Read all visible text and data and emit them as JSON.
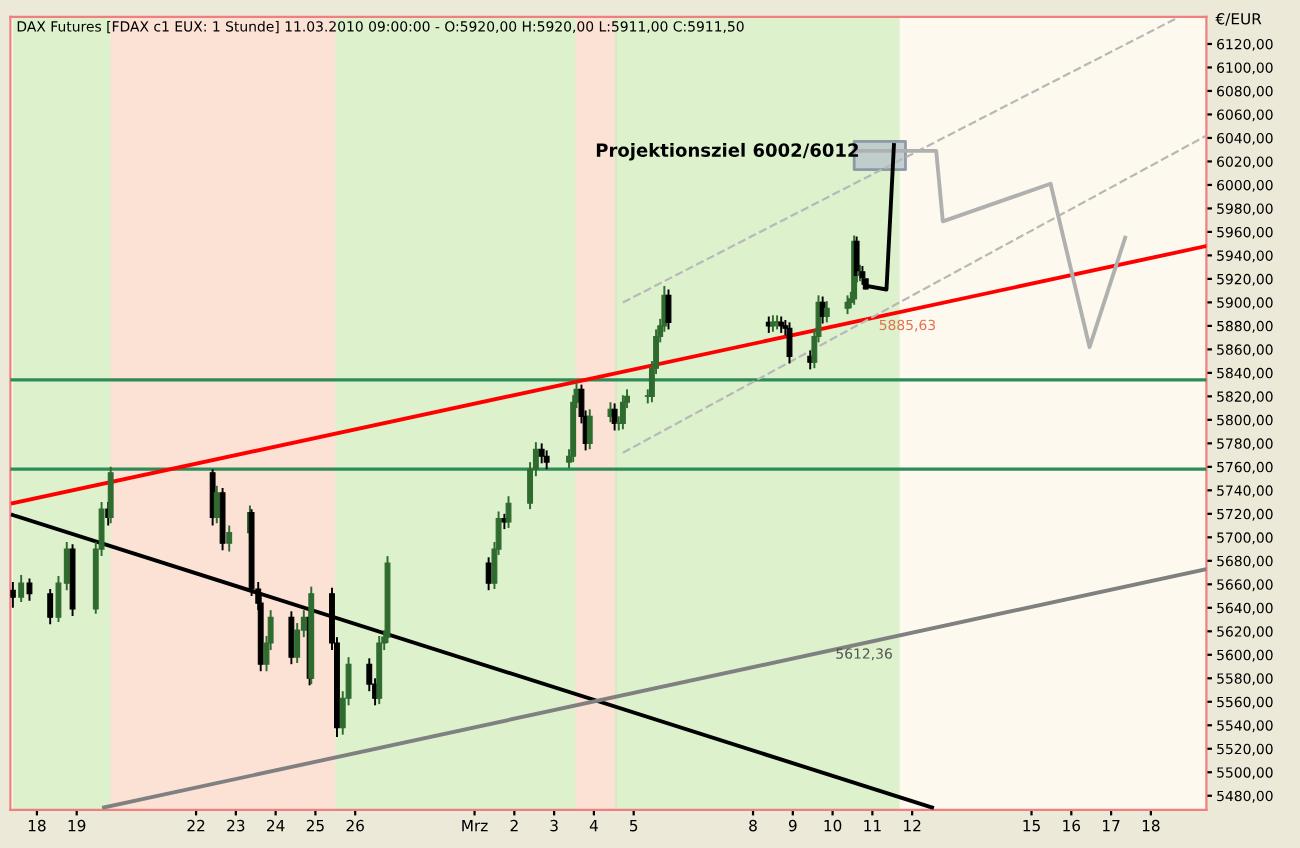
{
  "chart_data": {
    "type": "candlestick",
    "title": "DAX Futures [FDAX c1 EUX: 1 Stunde] 11.03.2010 09:00:00 - O:5920,00 H:5920,00 L:5911,00 C:5911,50",
    "ylabel": "€/EUR",
    "x": [
      "2010-02-17T09:30",
      "2010-02-17T14:30",
      "2010-02-17T19:30",
      "2010-02-18T08:00",
      "2010-02-18T13:00",
      "2010-02-18T18:00",
      "2010-02-18T21:30",
      "2010-02-19T11:30",
      "2010-02-19T15:00",
      "2010-02-19T19:00",
      "2010-02-19T20:30",
      "2010-02-22T10:00",
      "2010-02-22T12:30",
      "2010-02-22T16:00",
      "2010-02-22T20:00",
      "2010-02-23T08:30",
      "2010-02-23T09:30",
      "2010-02-23T13:30",
      "2010-02-23T15:00",
      "2010-02-23T18:30",
      "2010-02-23T21:00",
      "2010-02-24T09:30",
      "2010-02-24T13:00",
      "2010-02-24T17:00",
      "2010-02-24T20:30",
      "2010-02-24T21:30",
      "2010-02-25T10:00",
      "2010-02-25T13:00",
      "2010-02-25T16:30",
      "2010-02-25T20:00",
      "2010-02-26T08:30",
      "2010-02-26T12:00",
      "2010-02-26T14:30",
      "2010-02-26T17:30",
      "2010-02-26T19:30",
      "2010-03-01T08:30",
      "2010-03-01T12:00",
      "2010-03-01T14:30",
      "2010-03-01T18:00",
      "2010-03-01T20:30",
      "2010-03-02T09:30",
      "2010-03-02T13:00",
      "2010-03-02T16:30",
      "2010-03-02T19:30",
      "2010-03-03T09:00",
      "2010-03-03T11:30",
      "2010-03-03T13:30",
      "2010-03-03T16:30",
      "2010-03-03T19:00",
      "2010-03-03T21:30",
      "2010-03-04T10:00",
      "2010-03-04T12:30",
      "2010-03-04T15:00",
      "2010-03-04T17:30",
      "2010-03-04T20:00",
      "2010-03-05T08:30",
      "2010-03-05T11:00",
      "2010-03-05T13:30",
      "2010-03-05T16:00",
      "2010-03-05T18:30",
      "2010-03-05T21:00",
      "2010-03-08T09:30",
      "2010-03-08T12:00",
      "2010-03-08T14:30",
      "2010-03-08T17:00",
      "2010-03-08T19:30",
      "2010-03-08T22:00",
      "2010-03-09T10:30",
      "2010-03-09T13:00",
      "2010-03-09T15:30",
      "2010-03-09T18:00",
      "2010-03-09T20:30",
      "2010-03-10T09:00",
      "2010-03-10T11:00",
      "2010-03-10T13:00",
      "2010-03-10T14:30",
      "2010-03-10T16:30",
      "2010-03-10T18:00",
      "2010-03-10T20:00"
    ],
    "ohlc": [
      [
        5655,
        5662,
        5640,
        5649
      ],
      [
        5649,
        5668,
        5645,
        5661
      ],
      [
        5661,
        5665,
        5646,
        5652
      ],
      [
        5652,
        5656,
        5626,
        5632
      ],
      [
        5632,
        5667,
        5628,
        5661
      ],
      [
        5661,
        5696,
        5655,
        5690
      ],
      [
        5690,
        5694,
        5633,
        5639
      ],
      [
        5639,
        5696,
        5635,
        5690
      ],
      [
        5690,
        5730,
        5684,
        5724
      ],
      [
        5724,
        5730,
        5710,
        5717
      ],
      [
        5717,
        5760,
        5712,
        5755
      ],
      [
        5755,
        5758,
        5710,
        5717
      ],
      [
        5717,
        5744,
        5712,
        5738
      ],
      [
        5738,
        5742,
        5689,
        5695
      ],
      [
        5695,
        5710,
        5688,
        5704
      ],
      [
        5704,
        5727,
        5699,
        5721
      ],
      [
        5721,
        5724,
        5650,
        5656
      ],
      [
        5656,
        5662,
        5638,
        5644
      ],
      [
        5644,
        5650,
        5586,
        5592
      ],
      [
        5592,
        5616,
        5586,
        5610
      ],
      [
        5610,
        5638,
        5604,
        5632
      ],
      [
        5632,
        5637,
        5592,
        5598
      ],
      [
        5598,
        5627,
        5593,
        5621
      ],
      [
        5621,
        5638,
        5615,
        5632
      ],
      [
        5632,
        5637,
        5574,
        5580
      ],
      [
        5580,
        5658,
        5575,
        5652
      ],
      [
        5652,
        5657,
        5604,
        5610
      ],
      [
        5610,
        5615,
        5530,
        5538
      ],
      [
        5538,
        5569,
        5532,
        5563
      ],
      [
        5563,
        5598,
        5557,
        5592
      ],
      [
        5592,
        5597,
        5569,
        5575
      ],
      [
        5575,
        5580,
        5557,
        5563
      ],
      [
        5563,
        5616,
        5558,
        5610
      ],
      [
        5610,
        5621,
        5604,
        5615
      ],
      [
        5615,
        5684,
        5610,
        5678
      ],
      [
        5678,
        5683,
        5655,
        5661
      ],
      [
        5661,
        5696,
        5656,
        5690
      ],
      [
        5690,
        5722,
        5685,
        5716
      ],
      [
        5716,
        5720,
        5707,
        5713
      ],
      [
        5713,
        5735,
        5708,
        5729
      ],
      [
        5729,
        5764,
        5724,
        5758
      ],
      [
        5758,
        5781,
        5752,
        5775
      ],
      [
        5775,
        5780,
        5763,
        5769
      ],
      [
        5769,
        5774,
        5758,
        5764
      ],
      [
        5764,
        5775,
        5759,
        5769
      ],
      [
        5769,
        5821,
        5764,
        5815
      ],
      [
        5815,
        5832,
        5810,
        5826
      ],
      [
        5826,
        5830,
        5797,
        5803
      ],
      [
        5803,
        5808,
        5774,
        5780
      ],
      [
        5780,
        5809,
        5775,
        5803
      ],
      [
        5803,
        5815,
        5798,
        5809
      ],
      [
        5809,
        5814,
        5791,
        5797
      ],
      [
        5797,
        5803,
        5791,
        5797
      ],
      [
        5797,
        5821,
        5792,
        5815
      ],
      [
        5815,
        5826,
        5810,
        5820
      ],
      [
        5820,
        5826,
        5814,
        5820
      ],
      [
        5820,
        5850,
        5815,
        5844
      ],
      [
        5844,
        5877,
        5839,
        5871
      ],
      [
        5871,
        5886,
        5866,
        5880
      ],
      [
        5880,
        5914,
        5875,
        5906
      ],
      [
        5906,
        5911,
        5877,
        5883
      ],
      [
        5883,
        5888,
        5874,
        5880
      ],
      [
        5880,
        5889,
        5875,
        5883
      ],
      [
        5883,
        5889,
        5877,
        5883
      ],
      [
        5883,
        5888,
        5874,
        5880
      ],
      [
        5880,
        5885,
        5872,
        5878
      ],
      [
        5878,
        5883,
        5848,
        5854
      ],
      [
        5854,
        5859,
        5843,
        5849
      ],
      [
        5849,
        5877,
        5844,
        5871
      ],
      [
        5871,
        5906,
        5866,
        5900
      ],
      [
        5900,
        5905,
        5882,
        5888
      ],
      [
        5888,
        5901,
        5883,
        5895
      ],
      [
        5895,
        5906,
        5890,
        5900
      ],
      [
        5900,
        5909,
        5895,
        5903
      ],
      [
        5903,
        5957,
        5898,
        5952
      ],
      [
        5952,
        5956,
        5917,
        5923
      ],
      [
        5923,
        5932,
        5918,
        5926
      ],
      [
        5926,
        5931,
        5915,
        5921
      ],
      [
        5920,
        5920,
        5911,
        5911.5
      ]
    ],
    "series": [
      {
        "type": "line",
        "color": "#ff0000",
        "x": [
          "2010-02-17T09:30",
          "2010-03-19T09:30"
        ],
        "values": [
          5729,
          5948
        ]
      },
      {
        "type": "line",
        "color": "#000000",
        "x": [
          "2010-02-17T09:30",
          "2010-03-12T12:00"
        ],
        "values": [
          5719,
          5470
        ]
      },
      {
        "type": "line",
        "color": "#808080",
        "x": [
          "2010-02-19T16:30",
          "2010-03-19T09:30"
        ],
        "values": [
          5470,
          5673
        ]
      },
      {
        "type": "line",
        "color": "#b8b8b8",
        "line_style": "dashed",
        "x": [
          "2010-03-04T17:30",
          "2010-03-18T17:00"
        ],
        "values": [
          5900,
          6143
        ]
      },
      {
        "type": "line",
        "color": "#b8b8b8",
        "line_style": "dashed",
        "x": [
          "2010-03-04T17:30",
          "2010-03-19T09:30"
        ],
        "values": [
          5772,
          6042
        ]
      },
      {
        "type": "line",
        "color": "#b0b0b0",
        "x": [
          "2010-03-10T13:00",
          "2010-03-11T20:00",
          "2010-03-12T14:30",
          "2010-03-12T18:30",
          "2010-03-15T11:30",
          "2010-03-16T11:00",
          "2010-03-17T08:30"
        ],
        "values": [
          6029,
          6029,
          6029,
          5969,
          6001,
          5862,
          5955
        ],
        "lower": [
          6013,
          6013,
          null,
          null,
          null,
          null,
          null
        ],
        "upper": [
          6037,
          6037,
          null,
          null,
          null,
          null,
          null
        ]
      },
      {
        "type": "line",
        "color": "#000000",
        "x": [
          "2010-03-10T20:30",
          "2010-03-11T08:30",
          "2010-03-11T13:00"
        ],
        "values": [
          5914,
          5911,
          6034
        ]
      }
    ],
    "ref_lines": [
      {
        "axis": "y",
        "value": 5834,
        "color": "#2e8b57"
      },
      {
        "axis": "y",
        "value": 5758,
        "color": "#2e8b57"
      }
    ],
    "bands": [
      {
        "axis": "x",
        "from": "2010-02-17T09:30",
        "to": "2010-02-19T20:30",
        "color": "#c8ebb8"
      },
      {
        "axis": "x",
        "from": "2010-02-19T20:30",
        "to": "2010-02-25T12:00",
        "color": "#fbd0c4"
      },
      {
        "axis": "x",
        "from": "2010-02-25T12:00",
        "to": "2010-03-03T13:00",
        "color": "#c8ebb8"
      },
      {
        "axis": "x",
        "from": "2010-03-03T13:00",
        "to": "2010-03-04T14:00",
        "color": "#fbd0c4"
      },
      {
        "axis": "x",
        "from": "2010-03-04T12:30",
        "to": "2010-03-11T16:30",
        "color": "#c8ebb8"
      }
    ],
    "annotations": [
      "Projektionsziel 6002/6012",
      "5885,63",
      {
        "text": "5612,36",
        "x": "2010-03-10T19:00",
        "y": 5600
      }
    ],
    "xlim": [
      "2010-02-17T08:00",
      "2010-03-19T09:30"
    ],
    "xticks": [
      {
        "value": "2010-02-18",
        "label": "18"
      },
      {
        "value": "2010-02-19",
        "label": "19"
      },
      {
        "value": "2010-02-22",
        "label": "22"
      },
      {
        "value": "2010-02-23",
        "label": "23"
      },
      {
        "value": "2010-02-24",
        "label": "24"
      },
      {
        "value": "2010-02-25",
        "label": "25"
      },
      {
        "value": "2010-02-26",
        "label": "26"
      },
      {
        "value": "2010-03-01",
        "label": "Mrz"
      },
      {
        "value": "2010-03-02",
        "label": "2"
      },
      {
        "value": "2010-03-03",
        "label": "3"
      },
      {
        "value": "2010-03-04",
        "label": "4"
      },
      {
        "value": "2010-03-05",
        "label": "5"
      },
      {
        "value": "2010-03-08",
        "label": "8"
      },
      {
        "value": "2010-03-09",
        "label": "9"
      },
      {
        "value": "2010-03-10",
        "label": "10"
      },
      {
        "value": "2010-03-11",
        "label": "11"
      },
      {
        "value": "2010-03-12",
        "label": "12"
      },
      {
        "value": "2010-03-15",
        "label": "15"
      },
      {
        "value": "2010-03-16",
        "label": "16"
      },
      {
        "value": "2010-03-17",
        "label": "17"
      },
      {
        "value": "2010-03-18",
        "label": "18"
      }
    ],
    "ylim": [
      5468,
      6143
    ],
    "yticks": [
      {
        "value": 5480,
        "label": "5480,00"
      },
      {
        "value": 5500,
        "label": "5500,00"
      },
      {
        "value": 5520,
        "label": "5520,00"
      },
      {
        "value": 5540,
        "label": "5540,00"
      },
      {
        "value": 5560,
        "label": "5560,00"
      },
      {
        "value": 5580,
        "label": "5580,00"
      },
      {
        "value": 5600,
        "label": "5600,00"
      },
      {
        "value": 5620,
        "label": "5620,00"
      },
      {
        "value": 5640,
        "label": "5640,00"
      },
      {
        "value": 5660,
        "label": "5660,00"
      },
      {
        "value": 5680,
        "label": "5680,00"
      },
      {
        "value": 5700,
        "label": "5700,00"
      },
      {
        "value": 5720,
        "label": "5720,00"
      },
      {
        "value": 5740,
        "label": "5740,00"
      },
      {
        "value": 5760,
        "label": "5760,00"
      },
      {
        "value": 5780,
        "label": "5780,00"
      },
      {
        "value": 5800,
        "label": "5800,00"
      },
      {
        "value": 5820,
        "label": "5820,00"
      },
      {
        "value": 5840,
        "label": "5840,00"
      },
      {
        "value": 5860,
        "label": "5860,00"
      },
      {
        "value": 5880,
        "label": "5880,00"
      },
      {
        "value": 5900,
        "label": "5900,00"
      },
      {
        "value": 5920,
        "label": "5920,00"
      },
      {
        "value": 5940,
        "label": "5940,00"
      },
      {
        "value": 5960,
        "label": "5960,00"
      },
      {
        "value": 5980,
        "label": "5980,00"
      },
      {
        "value": 6000,
        "label": "6000,00"
      },
      {
        "value": 6020,
        "label": "6020,00"
      },
      {
        "value": 6040,
        "label": "6040,00"
      },
      {
        "value": 6060,
        "label": "6060,00"
      },
      {
        "value": 6080,
        "label": "6080,00"
      },
      {
        "value": 6100,
        "label": "6100,00"
      },
      {
        "value": 6120,
        "label": "6120,00"
      }
    ],
    "grid": false,
    "legend": false
  }
}
